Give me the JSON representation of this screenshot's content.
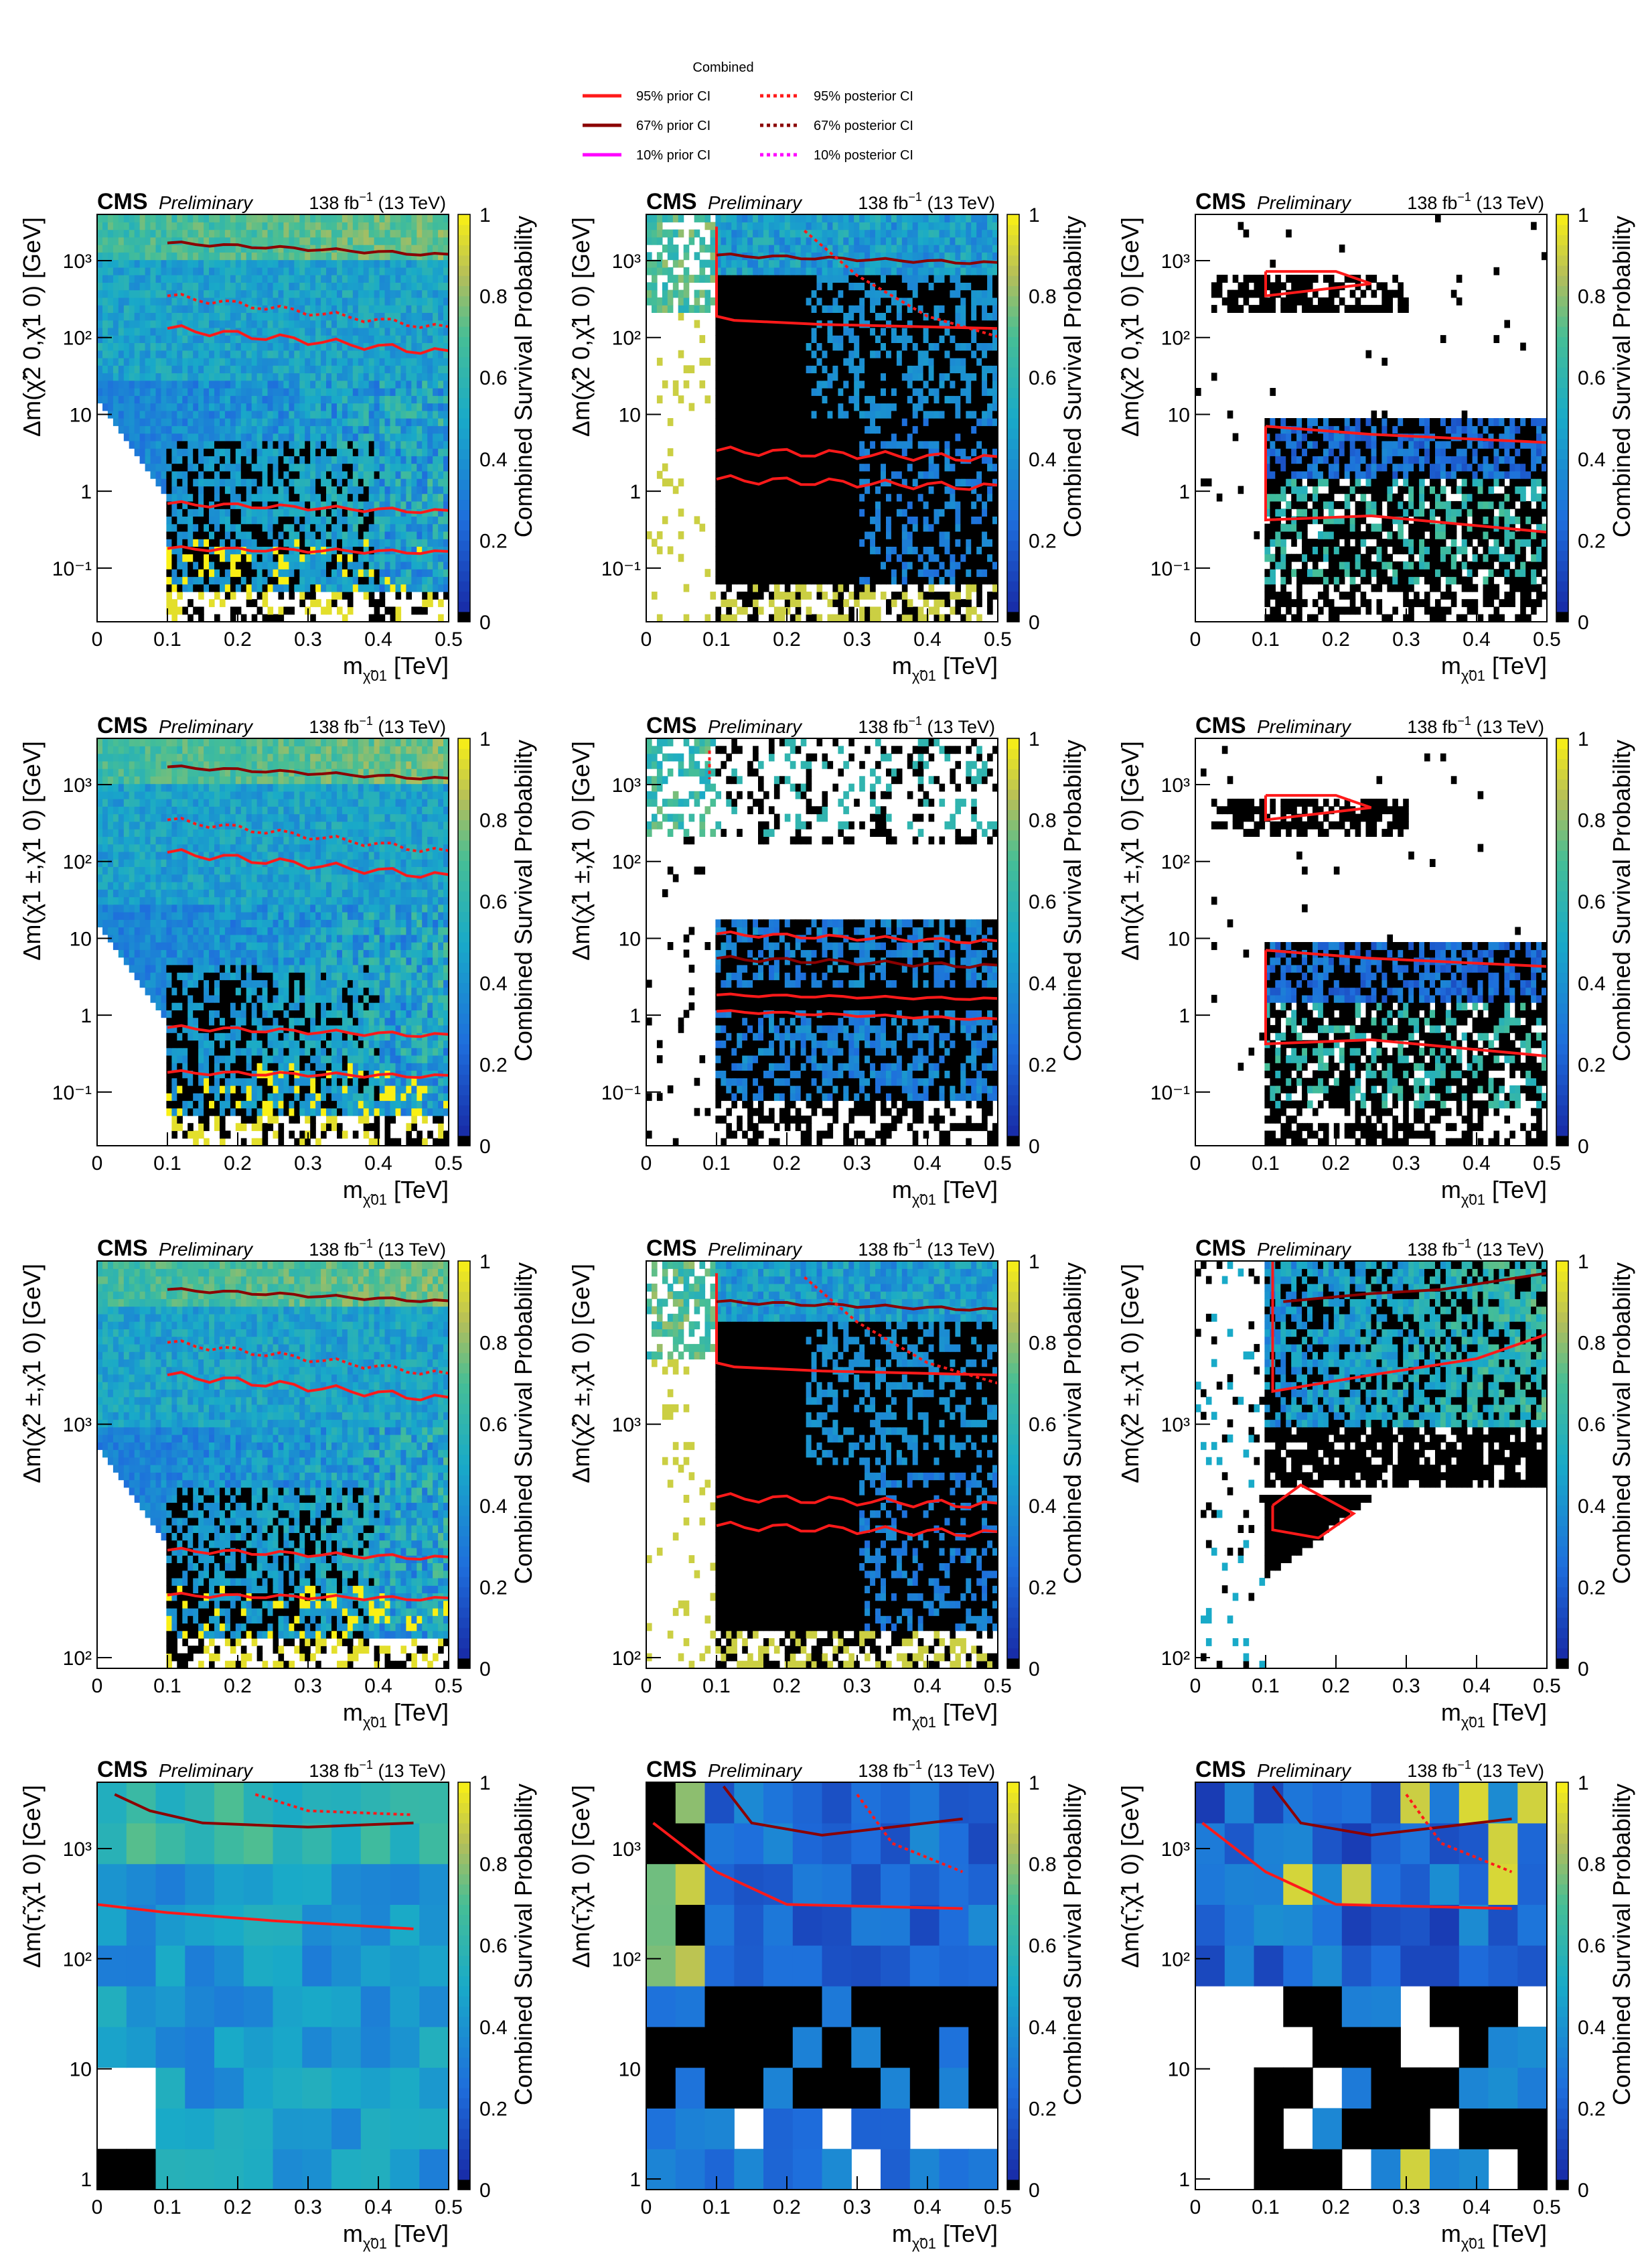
{
  "legend": {
    "title": "Combined",
    "entries": [
      {
        "label": "95%  prior CI",
        "style": "solid",
        "color": "#ff1a1a"
      },
      {
        "label": "95% posterior CI",
        "style": "dotted",
        "color": "#ff1a1a"
      },
      {
        "label": "67%  prior CI",
        "style": "solid",
        "color": "#8b0000"
      },
      {
        "label": "67% posterior CI",
        "style": "dotted",
        "color": "#8b0000"
      },
      {
        "label": "10%  prior CI",
        "style": "solid",
        "color": "#ff00ff"
      },
      {
        "label": "10% posterior CI",
        "style": "dotted",
        "color": "#ff00ff"
      }
    ]
  },
  "common": {
    "cms": "CMS",
    "preliminary": "Preliminary",
    "lumi": "138 fb",
    "lumi_exp": "−1",
    "energy": " (13 TeV)",
    "xlabel_main": "m",
    "xlabel_unit": " [TeV]",
    "xlabel_sub": "χ̃",
    "xlabel_sub_sup": "0",
    "xlabel_sub_idx": "1",
    "zlabel": "Combined Survival Probability",
    "xticks": [
      "0",
      "0.1",
      "0.2",
      "0.3",
      "0.4",
      "0.5"
    ],
    "zticks": [
      "0",
      "0.2",
      "0.4",
      "0.6",
      "0.8",
      "1"
    ]
  },
  "colors": {
    "prior95": "#ff1a1a",
    "prior67": "#8b0000",
    "prior10": "#ff00ff",
    "background_cells": "#000000"
  },
  "chart_data": [
    {
      "type": "heatmap",
      "row": 0,
      "col": 0,
      "ylabel": "Δm(χ̃2 0,χ̃1 0) [GeV]",
      "yscale": "log",
      "ylim": [
        0.02,
        4000
      ],
      "yticks": [
        "10⁻¹",
        "1",
        "10",
        "10²",
        "10³"
      ],
      "xlim": [
        0,
        0.5
      ],
      "zlim": [
        0,
        1
      ],
      "variant": "full-a"
    },
    {
      "type": "heatmap",
      "row": 0,
      "col": 1,
      "ylabel": "Δm(χ̃2 0,χ̃1 0) [GeV]",
      "yscale": "log",
      "ylim": [
        0.02,
        4000
      ],
      "yticks": [
        "10⁻¹",
        "1",
        "10",
        "10²",
        "10³"
      ],
      "xlim": [
        0,
        0.5
      ],
      "zlim": [
        0,
        1
      ],
      "variant": "dark-a"
    },
    {
      "type": "heatmap",
      "row": 0,
      "col": 2,
      "ylabel": "Δm(χ̃2 0,χ̃1 0) [GeV]",
      "yscale": "log",
      "ylim": [
        0.02,
        4000
      ],
      "yticks": [
        "10⁻¹",
        "1",
        "10",
        "10²",
        "10³"
      ],
      "xlim": [
        0,
        0.5
      ],
      "zlim": [
        0,
        1
      ],
      "variant": "sparse-a"
    },
    {
      "type": "heatmap",
      "row": 1,
      "col": 0,
      "ylabel": "Δm(χ̃1 ±,χ̃1 0) [GeV]",
      "yscale": "log",
      "ylim": [
        0.02,
        4000
      ],
      "yticks": [
        "10⁻¹",
        "1",
        "10",
        "10²",
        "10³"
      ],
      "xlim": [
        0,
        0.5
      ],
      "zlim": [
        0,
        1
      ],
      "variant": "full-b"
    },
    {
      "type": "heatmap",
      "row": 1,
      "col": 1,
      "ylabel": "Δm(χ̃1 ±,χ̃1 0) [GeV]",
      "yscale": "log",
      "ylim": [
        0.02,
        4000
      ],
      "yticks": [
        "10⁻¹",
        "1",
        "10",
        "10²",
        "10³"
      ],
      "xlim": [
        0,
        0.5
      ],
      "zlim": [
        0,
        1
      ],
      "variant": "banded-b"
    },
    {
      "type": "heatmap",
      "row": 1,
      "col": 2,
      "ylabel": "Δm(χ̃1 ±,χ̃1 0) [GeV]",
      "yscale": "log",
      "ylim": [
        0.02,
        4000
      ],
      "yticks": [
        "10⁻¹",
        "1",
        "10",
        "10²",
        "10³"
      ],
      "xlim": [
        0,
        0.5
      ],
      "zlim": [
        0,
        1
      ],
      "variant": "sparse-b"
    },
    {
      "type": "heatmap",
      "row": 2,
      "col": 0,
      "ylabel": "Δm(χ̃2 ±,χ̃1 0) [GeV]",
      "yscale": "log",
      "ylim": [
        90,
        5000
      ],
      "yticks": [
        "10²",
        "10³"
      ],
      "xlim": [
        0,
        0.5
      ],
      "zlim": [
        0,
        1
      ],
      "variant": "full-c"
    },
    {
      "type": "heatmap",
      "row": 2,
      "col": 1,
      "ylabel": "Δm(χ̃2 ±,χ̃1 0) [GeV]",
      "yscale": "log",
      "ylim": [
        90,
        5000
      ],
      "yticks": [
        "10²",
        "10³"
      ],
      "xlim": [
        0,
        0.5
      ],
      "zlim": [
        0,
        1
      ],
      "variant": "dark-c"
    },
    {
      "type": "heatmap",
      "row": 2,
      "col": 2,
      "ylabel": "Δm(χ̃2 ±,χ̃1 0) [GeV]",
      "yscale": "log",
      "ylim": [
        90,
        5000
      ],
      "yticks": [
        "10²",
        "10³"
      ],
      "xlim": [
        0,
        0.5
      ],
      "zlim": [
        0,
        1
      ],
      "variant": "sparse-c"
    },
    {
      "type": "heatmap",
      "row": 3,
      "col": 0,
      "ylabel": "Δm(τ̃,χ̃1 0) [GeV]",
      "yscale": "log",
      "ylim": [
        0.8,
        4000
      ],
      "yticks": [
        "1",
        "10",
        "10²",
        "10³"
      ],
      "xlim": [
        0,
        0.5
      ],
      "zlim": [
        0,
        1
      ],
      "variant": "coarse-a"
    },
    {
      "type": "heatmap",
      "row": 3,
      "col": 1,
      "ylabel": "Δm(τ̃,χ̃1 0) [GeV]",
      "yscale": "log",
      "ylim": [
        0.8,
        4000
      ],
      "yticks": [
        "1",
        "10",
        "10²",
        "10³"
      ],
      "xlim": [
        0,
        0.5
      ],
      "zlim": [
        0,
        1
      ],
      "variant": "coarse-b"
    },
    {
      "type": "heatmap",
      "row": 3,
      "col": 2,
      "ylabel": "Δm(τ̃,χ̃1 0) [GeV]",
      "yscale": "log",
      "ylim": [
        0.8,
        4000
      ],
      "yticks": [
        "1",
        "10",
        "10²",
        "10³"
      ],
      "xlim": [
        0,
        0.5
      ],
      "zlim": [
        0,
        1
      ],
      "variant": "coarse-c"
    }
  ]
}
